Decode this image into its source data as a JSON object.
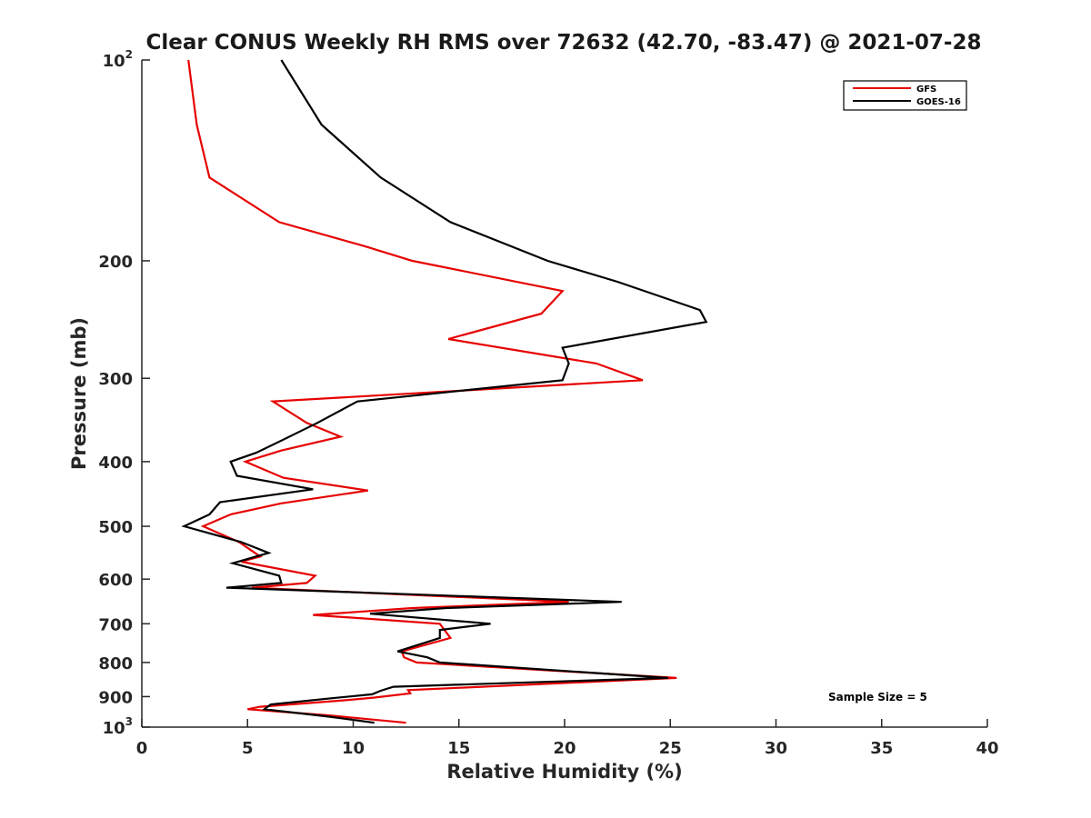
{
  "chart_data": {
    "type": "line",
    "title": "Clear CONUS Weekly RH RMS over 72632 (42.70, -83.47) @ 2021-07-28",
    "xlabel": "Relative Humidity (%)",
    "ylabel": "Pressure (mb)",
    "xlim": [
      0,
      40
    ],
    "ylim": [
      1000,
      100
    ],
    "y_scale": "log",
    "y_reversed": true,
    "grid": false,
    "legend_position": "top-right",
    "x_ticks": [
      {
        "value": 0,
        "label": "0"
      },
      {
        "value": 5,
        "label": "5"
      },
      {
        "value": 10,
        "label": "10"
      },
      {
        "value": 15,
        "label": "15"
      },
      {
        "value": 20,
        "label": "20"
      },
      {
        "value": 25,
        "label": "25"
      },
      {
        "value": 30,
        "label": "30"
      },
      {
        "value": 35,
        "label": "35"
      },
      {
        "value": 40,
        "label": "40"
      }
    ],
    "y_ticks": [
      {
        "value": 100,
        "base": "10",
        "exp": "2"
      },
      {
        "value": 200,
        "label": "200"
      },
      {
        "value": 300,
        "label": "300"
      },
      {
        "value": 400,
        "label": "400"
      },
      {
        "value": 500,
        "label": "500"
      },
      {
        "value": 600,
        "label": "600"
      },
      {
        "value": 700,
        "label": "700"
      },
      {
        "value": 800,
        "label": "800"
      },
      {
        "value": 900,
        "label": "900"
      },
      {
        "value": 1000,
        "base": "10",
        "exp": "3"
      }
    ],
    "annotation": "Sample Size = 5",
    "series": [
      {
        "name": "GFS",
        "color": "#e60000",
        "points": [
          [
            2.2,
            100
          ],
          [
            2.6,
            125
          ],
          [
            3.2,
            150
          ],
          [
            6.5,
            175
          ],
          [
            10.5,
            190
          ],
          [
            12.8,
            200
          ],
          [
            19.9,
            222
          ],
          [
            18.9,
            240
          ],
          [
            14.5,
            262
          ],
          [
            21.5,
            285
          ],
          [
            23.7,
            302
          ],
          [
            6.2,
            325
          ],
          [
            7.8,
            350
          ],
          [
            9.4,
            367
          ],
          [
            6.6,
            385
          ],
          [
            4.9,
            400
          ],
          [
            6.7,
            423
          ],
          [
            10.7,
            442
          ],
          [
            6.6,
            462
          ],
          [
            4.2,
            480
          ],
          [
            2.9,
            500
          ],
          [
            4.6,
            528
          ],
          [
            5.6,
            555
          ],
          [
            4.7,
            565
          ],
          [
            8.2,
            593
          ],
          [
            7.8,
            608
          ],
          [
            5.2,
            618
          ],
          [
            20.2,
            649
          ],
          [
            12.8,
            663
          ],
          [
            8.1,
            679
          ],
          [
            14.1,
            700
          ],
          [
            14.6,
            735
          ],
          [
            12.3,
            770
          ],
          [
            12.4,
            786
          ],
          [
            13.0,
            800
          ],
          [
            25.3,
            844
          ],
          [
            12.6,
            880
          ],
          [
            12.7,
            890
          ],
          [
            11.0,
            903
          ],
          [
            9.9,
            910
          ],
          [
            5.6,
            932
          ],
          [
            5.0,
            940
          ],
          [
            8.8,
            960
          ],
          [
            12.5,
            985
          ]
        ]
      },
      {
        "name": "GOES-16",
        "color": "#000000",
        "points": [
          [
            6.6,
            100
          ],
          [
            8.5,
            125
          ],
          [
            11.3,
            150
          ],
          [
            14.6,
            175
          ],
          [
            19.2,
            200
          ],
          [
            22.5,
            215
          ],
          [
            26.4,
            237
          ],
          [
            26.7,
            247
          ],
          [
            19.9,
            270
          ],
          [
            20.2,
            285
          ],
          [
            19.9,
            302
          ],
          [
            10.2,
            325
          ],
          [
            8.3,
            350
          ],
          [
            6.6,
            372
          ],
          [
            5.4,
            388
          ],
          [
            4.2,
            400
          ],
          [
            4.5,
            420
          ],
          [
            8.1,
            440
          ],
          [
            3.7,
            460
          ],
          [
            3.2,
            480
          ],
          [
            2.0,
            500
          ],
          [
            4.7,
            528
          ],
          [
            6.0,
            548
          ],
          [
            4.3,
            568
          ],
          [
            6.5,
            593
          ],
          [
            6.6,
            608
          ],
          [
            4.0,
            618
          ],
          [
            22.7,
            649
          ],
          [
            14.4,
            663
          ],
          [
            10.8,
            676
          ],
          [
            16.5,
            700
          ],
          [
            14.1,
            715
          ],
          [
            14.1,
            735
          ],
          [
            12.1,
            770
          ],
          [
            13.5,
            786
          ],
          [
            14.1,
            800
          ],
          [
            24.9,
            844
          ],
          [
            11.9,
            870
          ],
          [
            11.3,
            882
          ],
          [
            10.9,
            893
          ],
          [
            9.0,
            905
          ],
          [
            6.1,
            925
          ],
          [
            5.8,
            940
          ],
          [
            8.9,
            965
          ],
          [
            11.0,
            985
          ]
        ]
      }
    ]
  }
}
